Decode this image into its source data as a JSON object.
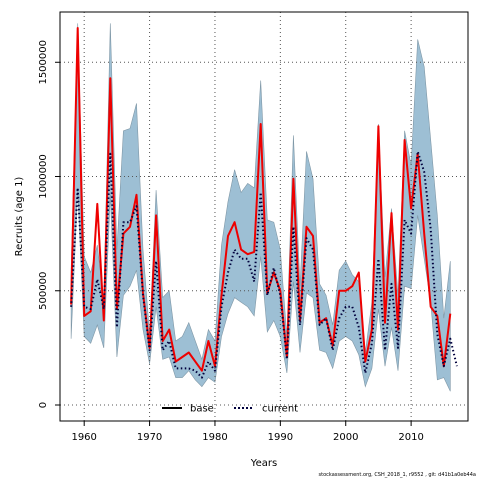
{
  "chart_data": {
    "type": "line",
    "title": "",
    "xlabel": "Years",
    "ylabel": "Recruits (age 1)",
    "xlim": [
      1956.3,
      2018.7
    ],
    "ylim": [
      -70000,
      1720000
    ],
    "xticks": [
      1960,
      1970,
      1980,
      1990,
      2000,
      2010
    ],
    "yticks": [
      0,
      500000,
      1000000,
      1500000
    ],
    "ytick_labels": [
      "0",
      "500000",
      "1000000",
      "1500000"
    ],
    "grid": true,
    "legend_position": "bottom-center",
    "colors": {
      "base": "#ee0000",
      "current": "#00003c",
      "band": "#9dbfd4",
      "band_edge": "#7f97a6",
      "grid": "#555555"
    },
    "x": [
      1958,
      1959,
      1960,
      1961,
      1962,
      1963,
      1964,
      1965,
      1966,
      1967,
      1968,
      1969,
      1970,
      1971,
      1972,
      1973,
      1974,
      1975,
      1976,
      1977,
      1978,
      1979,
      1980,
      1981,
      1982,
      1983,
      1984,
      1985,
      1986,
      1987,
      1988,
      1989,
      1990,
      1991,
      1992,
      1993,
      1994,
      1995,
      1996,
      1997,
      1998,
      1999,
      2000,
      2001,
      2002,
      2003,
      2004,
      2005,
      2006,
      2007,
      2008,
      2009,
      2010,
      2011,
      2012,
      2013,
      2014,
      2015,
      2016,
      2017
    ],
    "series": [
      {
        "name": "base",
        "style": "solid",
        "values": [
          440000,
          1650000,
          390000,
          410000,
          880000,
          370000,
          1430000,
          420000,
          750000,
          780000,
          920000,
          490000,
          250000,
          830000,
          280000,
          330000,
          190000,
          210000,
          230000,
          190000,
          150000,
          280000,
          170000,
          480000,
          740000,
          800000,
          680000,
          660000,
          670000,
          1230000,
          490000,
          580000,
          500000,
          210000,
          990000,
          370000,
          780000,
          740000,
          360000,
          380000,
          260000,
          500000,
          500000,
          520000,
          580000,
          190000,
          330000,
          1220000,
          360000,
          840000,
          330000,
          1160000,
          860000,
          1100000,
          750000,
          430000,
          390000,
          170000,
          400000,
          null
        ]
      },
      {
        "name": "current",
        "style": "dotted",
        "values": [
          430000,
          950000,
          430000,
          420000,
          550000,
          420000,
          1100000,
          340000,
          800000,
          800000,
          870000,
          480000,
          240000,
          630000,
          240000,
          280000,
          160000,
          160000,
          160000,
          150000,
          120000,
          190000,
          150000,
          430000,
          580000,
          680000,
          640000,
          640000,
          540000,
          930000,
          480000,
          600000,
          480000,
          200000,
          780000,
          350000,
          730000,
          680000,
          350000,
          380000,
          240000,
          380000,
          430000,
          430000,
          340000,
          140000,
          270000,
          640000,
          240000,
          530000,
          250000,
          810000,
          750000,
          1110000,
          1020000,
          770000,
          310000,
          170000,
          290000,
          170000
        ]
      }
    ],
    "band": {
      "lower": [
        290000,
        950000,
        300000,
        270000,
        350000,
        250000,
        920000,
        210000,
        480000,
        520000,
        590000,
        330000,
        180000,
        430000,
        200000,
        210000,
        120000,
        120000,
        150000,
        110000,
        80000,
        120000,
        100000,
        300000,
        400000,
        470000,
        450000,
        430000,
        390000,
        650000,
        320000,
        370000,
        300000,
        140000,
        540000,
        230000,
        490000,
        470000,
        240000,
        230000,
        160000,
        280000,
        300000,
        280000,
        220000,
        80000,
        160000,
        420000,
        170000,
        340000,
        150000,
        520000,
        510000,
        830000,
        640000,
        450000,
        110000,
        120000,
        60000,
        null
      ],
      "upper": [
        590000,
        1670000,
        650000,
        580000,
        700000,
        450000,
        1670000,
        680000,
        1200000,
        1210000,
        1320000,
        680000,
        310000,
        940000,
        470000,
        500000,
        280000,
        300000,
        360000,
        280000,
        200000,
        330000,
        280000,
        700000,
        890000,
        1030000,
        930000,
        970000,
        950000,
        1420000,
        810000,
        800000,
        680000,
        300000,
        1180000,
        520000,
        1110000,
        990000,
        530000,
        480000,
        350000,
        590000,
        630000,
        570000,
        540000,
        230000,
        450000,
        1230000,
        560000,
        860000,
        480000,
        1200000,
        1050000,
        1600000,
        1480000,
        1160000,
        830000,
        380000,
        630000,
        530000
      ]
    }
  },
  "footer_text": "stockassessment.org, CSH_2018_1, r9552 , git: d41b1a0eb44a"
}
